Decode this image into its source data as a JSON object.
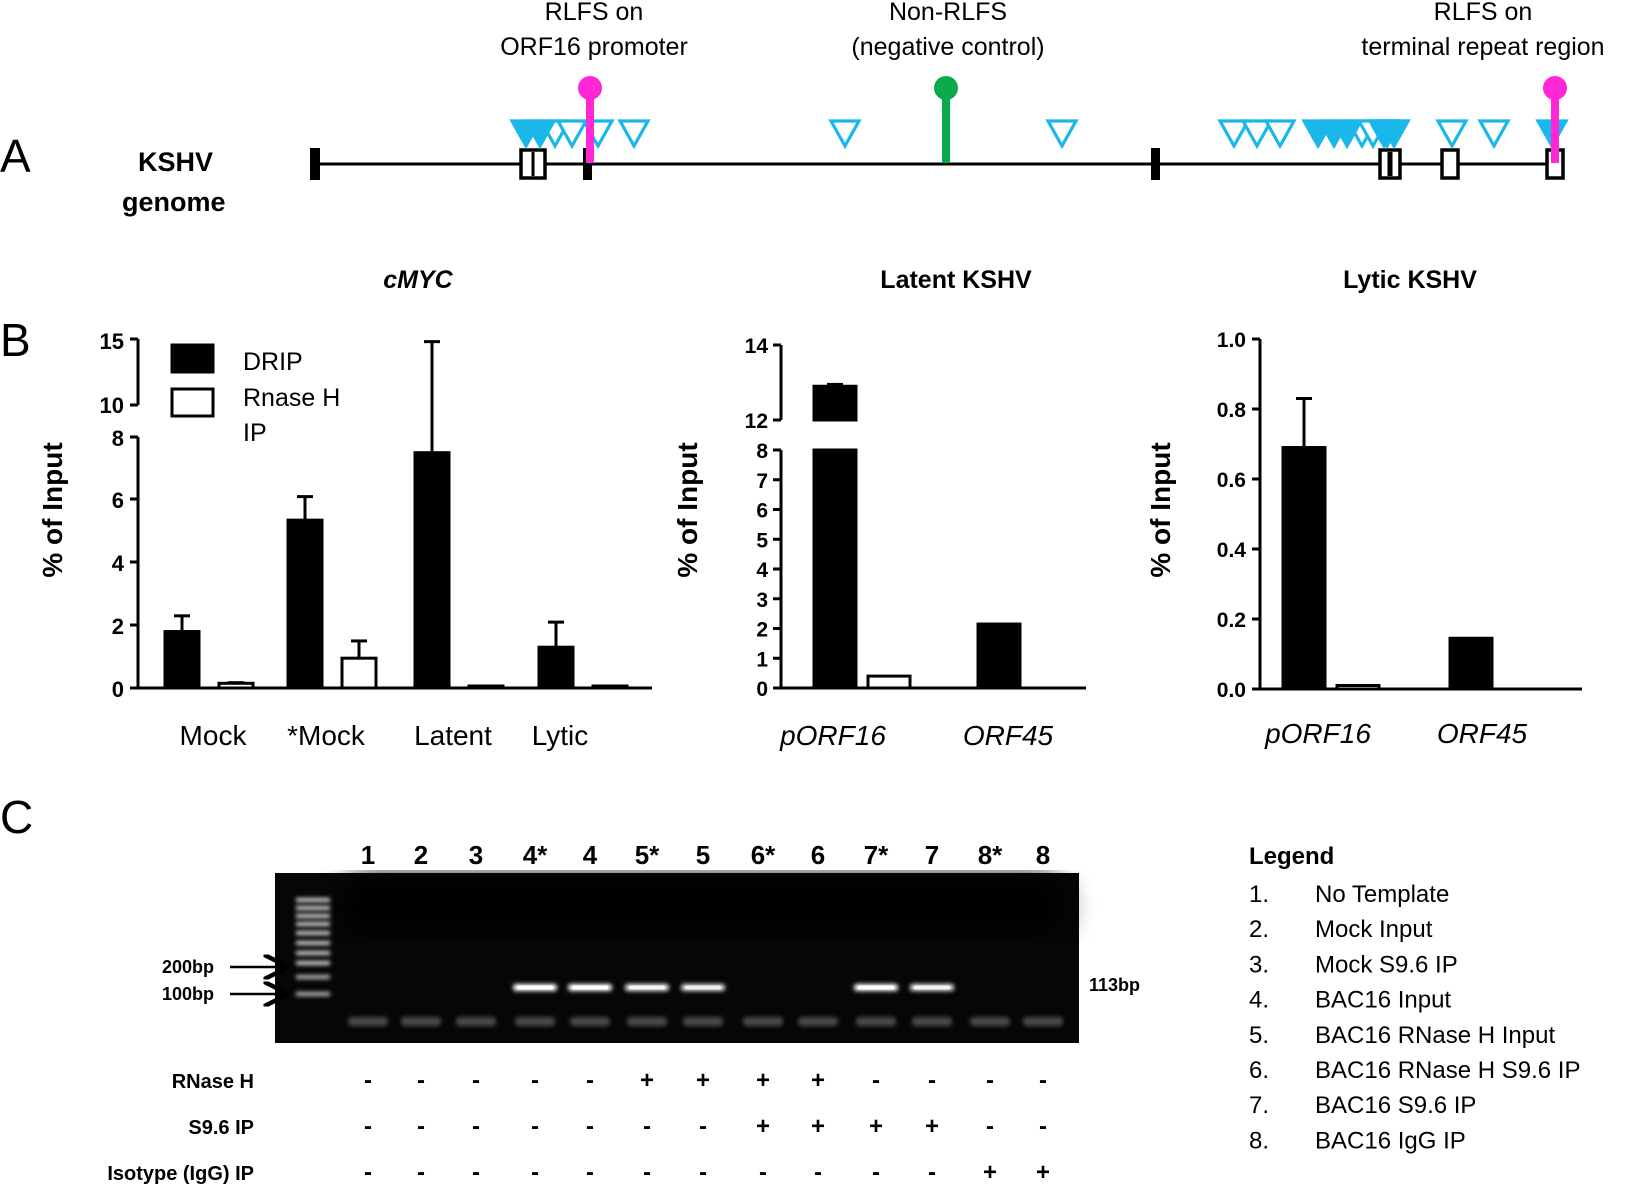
{
  "panelA": {
    "letter": "A",
    "genome_label_1": "KSHV",
    "genome_label_2": "genome",
    "site_labels": [
      {
        "line1": "RLFS on",
        "line2": "ORF16 promoter",
        "pin_color": "#ff27d6"
      },
      {
        "line1": "Non-RLFS",
        "line2": "(negative control)",
        "pin_color": "#0aaa4a"
      },
      {
        "line1": "RLFS on",
        "line2": "terminal repeat region",
        "pin_color": "#ff27d6"
      }
    ],
    "rlfs_marker_color": "#1ab8ea"
  },
  "panelB": {
    "letter": "B",
    "legend": [
      "DRIP",
      "Rnase H",
      "IP"
    ]
  },
  "chart_data": [
    {
      "type": "bar",
      "title": "cMYC",
      "ylabel": "% of Input",
      "categories": [
        "Mock",
        "*Mock",
        "Latent",
        "Lytic"
      ],
      "axis_break": {
        "lower": [
          0,
          8
        ],
        "upper": [
          10,
          15
        ]
      },
      "yticks_lower": [
        "0",
        "2",
        "4",
        "6",
        "8"
      ],
      "yticks_upper": [
        "10",
        "15"
      ],
      "series": [
        {
          "name": "DRIP",
          "values": [
            1.8,
            5.35,
            7.5,
            1.3
          ],
          "errors": [
            0.5,
            0.75,
            7.3,
            0.8
          ],
          "fill": "#000000"
        },
        {
          "name": "Rnase H IP",
          "values": [
            0.15,
            0.95,
            0.02,
            0.02
          ],
          "errors": [
            0.02,
            0.55,
            0,
            0
          ],
          "fill": "#ffffff"
        }
      ]
    },
    {
      "type": "bar",
      "title": "Latent KSHV",
      "ylabel": "% of Input",
      "categories": [
        "pORF16",
        "ORF45"
      ],
      "axis_break": {
        "lower": [
          0,
          8
        ],
        "upper": [
          12,
          14
        ]
      },
      "yticks_lower": [
        "0",
        "1",
        "2",
        "3",
        "4",
        "5",
        "6",
        "7",
        "8"
      ],
      "yticks_upper": [
        "12",
        "14"
      ],
      "series": [
        {
          "name": "DRIP",
          "values": [
            12.9,
            2.15
          ],
          "errors": [
            0.05,
            0
          ],
          "fill": "#000000"
        },
        {
          "name": "Rnase H IP",
          "values": [
            0.4,
            0.0
          ],
          "errors": [
            0,
            0
          ],
          "fill": "#ffffff"
        }
      ]
    },
    {
      "type": "bar",
      "title": "Lytic KSHV",
      "ylabel": "% of Input",
      "categories": [
        "pORF16",
        "ORF45"
      ],
      "ylim": [
        0,
        1.0
      ],
      "yticks": [
        "0.0",
        "0.2",
        "0.4",
        "0.6",
        "0.8",
        "1.0"
      ],
      "series": [
        {
          "name": "DRIP",
          "values": [
            0.69,
            0.145
          ],
          "errors": [
            0.14,
            0
          ],
          "fill": "#000000"
        },
        {
          "name": "Rnase H IP",
          "values": [
            0.01,
            0.0
          ],
          "errors": [
            0,
            0
          ],
          "fill": "#ffffff"
        }
      ]
    }
  ],
  "panelC": {
    "letter": "C",
    "lanes": [
      "1",
      "2",
      "3",
      "4*",
      "4",
      "5*",
      "5",
      "6*",
      "6",
      "7*",
      "7",
      "8*",
      "8"
    ],
    "ladder_labels": [
      "200bp",
      "100bp"
    ],
    "product_label": "113bp",
    "band_intensity": [
      0,
      0,
      0,
      1,
      1,
      0.8,
      0.7,
      0,
      0,
      1,
      0.75,
      0,
      0
    ],
    "conditions": [
      {
        "label": "RNase H",
        "marks": [
          "-",
          "-",
          "-",
          "-",
          "-",
          "+",
          "+",
          "+",
          "+",
          "-",
          "-",
          "-",
          "-"
        ]
      },
      {
        "label": "S9.6 IP",
        "marks": [
          "-",
          "-",
          "-",
          "-",
          "-",
          "-",
          "-",
          "+",
          "+",
          "+",
          "+",
          "-",
          "-"
        ]
      },
      {
        "label": "Isotype (IgG) IP",
        "marks": [
          "-",
          "-",
          "-",
          "-",
          "-",
          "-",
          "-",
          "-",
          "-",
          "-",
          "-",
          "+",
          "+"
        ]
      }
    ],
    "legend_title": "Legend",
    "legend_items": [
      {
        "num": "1.",
        "text": "No Template"
      },
      {
        "num": "2.",
        "text": "Mock Input"
      },
      {
        "num": "3.",
        "text": "Mock S9.6 IP"
      },
      {
        "num": "4.",
        "text": "BAC16 Input"
      },
      {
        "num": "5.",
        "text": "BAC16 RNase H Input"
      },
      {
        "num": "6.",
        "text": "BAC16 RNase H S9.6 IP"
      },
      {
        "num": "7.",
        "text": "BAC16 S9.6 IP"
      },
      {
        "num": "8.",
        "text": "BAC16 IgG IP"
      }
    ]
  }
}
